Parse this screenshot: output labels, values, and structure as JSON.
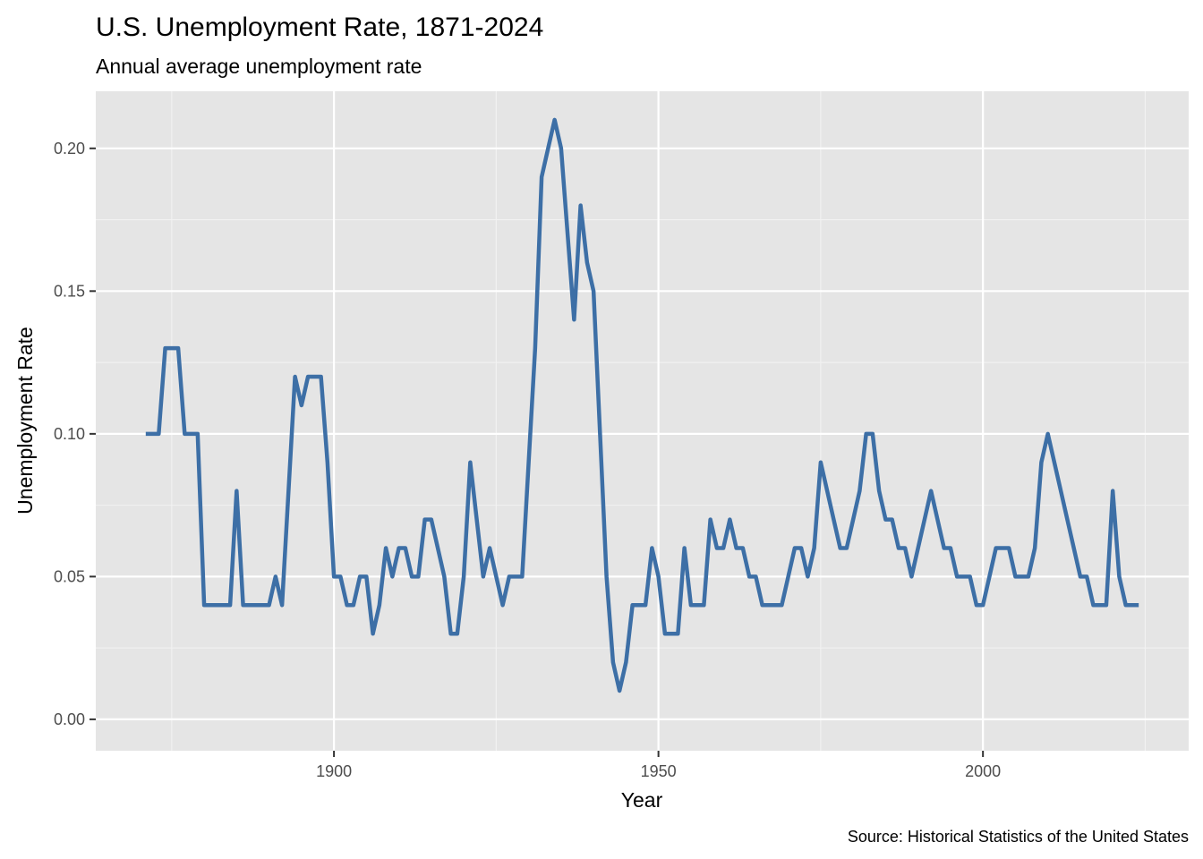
{
  "chart_data": {
    "type": "line",
    "title": "U.S. Unemployment Rate, 1871-2024",
    "subtitle": "Annual average unemployment rate",
    "xlabel": "Year",
    "ylabel": "Unemployment Rate",
    "caption": "Source: Historical Statistics of the United States",
    "xlim": [
      1863.3,
      1831.7
    ],
    "ylim": [
      -0.011,
      0.22
    ],
    "x_ticks": [
      1900,
      1950,
      2000
    ],
    "x_tick_labels": [
      "1900",
      "1950",
      "2000"
    ],
    "y_ticks": [
      0.0,
      0.05,
      0.1,
      0.15,
      0.2
    ],
    "y_tick_labels": [
      "0.00",
      "0.05",
      "0.10",
      "0.15",
      "0.20"
    ],
    "grid": true,
    "line_color": "#3d6fa6",
    "panel_background": "#e5e5e5",
    "x": [
      1871,
      1872,
      1873,
      1874,
      1875,
      1876,
      1877,
      1878,
      1879,
      1880,
      1881,
      1882,
      1883,
      1884,
      1885,
      1886,
      1887,
      1888,
      1889,
      1890,
      1891,
      1892,
      1893,
      1894,
      1895,
      1896,
      1897,
      1898,
      1899,
      1900,
      1901,
      1902,
      1903,
      1904,
      1905,
      1906,
      1907,
      1908,
      1909,
      1910,
      1911,
      1912,
      1913,
      1914,
      1915,
      1916,
      1917,
      1918,
      1919,
      1920,
      1921,
      1922,
      1923,
      1924,
      1925,
      1926,
      1927,
      1928,
      1929,
      1930,
      1931,
      1932,
      1933,
      1934,
      1935,
      1936,
      1937,
      1938,
      1939,
      1940,
      1941,
      1942,
      1943,
      1944,
      1945,
      1946,
      1947,
      1948,
      1949,
      1950,
      1951,
      1952,
      1953,
      1954,
      1955,
      1956,
      1957,
      1958,
      1959,
      1960,
      1961,
      1962,
      1963,
      1964,
      1965,
      1966,
      1967,
      1968,
      1969,
      1970,
      1971,
      1972,
      1973,
      1974,
      1975,
      1976,
      1977,
      1978,
      1979,
      1980,
      1981,
      1982,
      1983,
      1984,
      1985,
      1986,
      1987,
      1988,
      1989,
      1990,
      1991,
      1992,
      1993,
      1994,
      1995,
      1996,
      1997,
      1998,
      1999,
      2000,
      2001,
      2002,
      2003,
      2004,
      2005,
      2006,
      2007,
      2008,
      2009,
      2010,
      2011,
      2012,
      2013,
      2014,
      2015,
      2016,
      2017,
      2018,
      2019,
      2020,
      2021,
      2022,
      2023,
      2024
    ],
    "values": [
      0.1,
      0.1,
      0.1,
      0.13,
      0.13,
      0.13,
      0.1,
      0.1,
      0.1,
      0.04,
      0.04,
      0.04,
      0.04,
      0.04,
      0.08,
      0.04,
      0.04,
      0.04,
      0.04,
      0.04,
      0.05,
      0.04,
      0.08,
      0.12,
      0.11,
      0.12,
      0.12,
      0.12,
      0.09,
      0.05,
      0.05,
      0.04,
      0.04,
      0.05,
      0.05,
      0.03,
      0.04,
      0.06,
      0.05,
      0.06,
      0.06,
      0.05,
      0.05,
      0.07,
      0.07,
      0.06,
      0.05,
      0.03,
      0.03,
      0.05,
      0.09,
      0.07,
      0.05,
      0.06,
      0.05,
      0.04,
      0.05,
      0.05,
      0.05,
      0.09,
      0.13,
      0.19,
      0.2,
      0.21,
      0.2,
      0.17,
      0.14,
      0.18,
      0.16,
      0.15,
      0.1,
      0.05,
      0.02,
      0.01,
      0.02,
      0.04,
      0.04,
      0.04,
      0.06,
      0.05,
      0.03,
      0.03,
      0.03,
      0.06,
      0.04,
      0.04,
      0.04,
      0.07,
      0.06,
      0.06,
      0.07,
      0.06,
      0.06,
      0.05,
      0.05,
      0.04,
      0.04,
      0.04,
      0.04,
      0.05,
      0.06,
      0.06,
      0.05,
      0.06,
      0.09,
      0.08,
      0.07,
      0.06,
      0.06,
      0.07,
      0.08,
      0.1,
      0.1,
      0.08,
      0.07,
      0.07,
      0.06,
      0.06,
      0.05,
      0.06,
      0.07,
      0.08,
      0.07,
      0.06,
      0.06,
      0.05,
      0.05,
      0.05,
      0.04,
      0.04,
      0.05,
      0.06,
      0.06,
      0.06,
      0.05,
      0.05,
      0.05,
      0.06,
      0.09,
      0.1,
      0.09,
      0.08,
      0.07,
      0.06,
      0.05,
      0.05,
      0.04,
      0.04,
      0.04,
      0.08,
      0.05,
      0.04,
      0.04,
      0.04
    ]
  }
}
